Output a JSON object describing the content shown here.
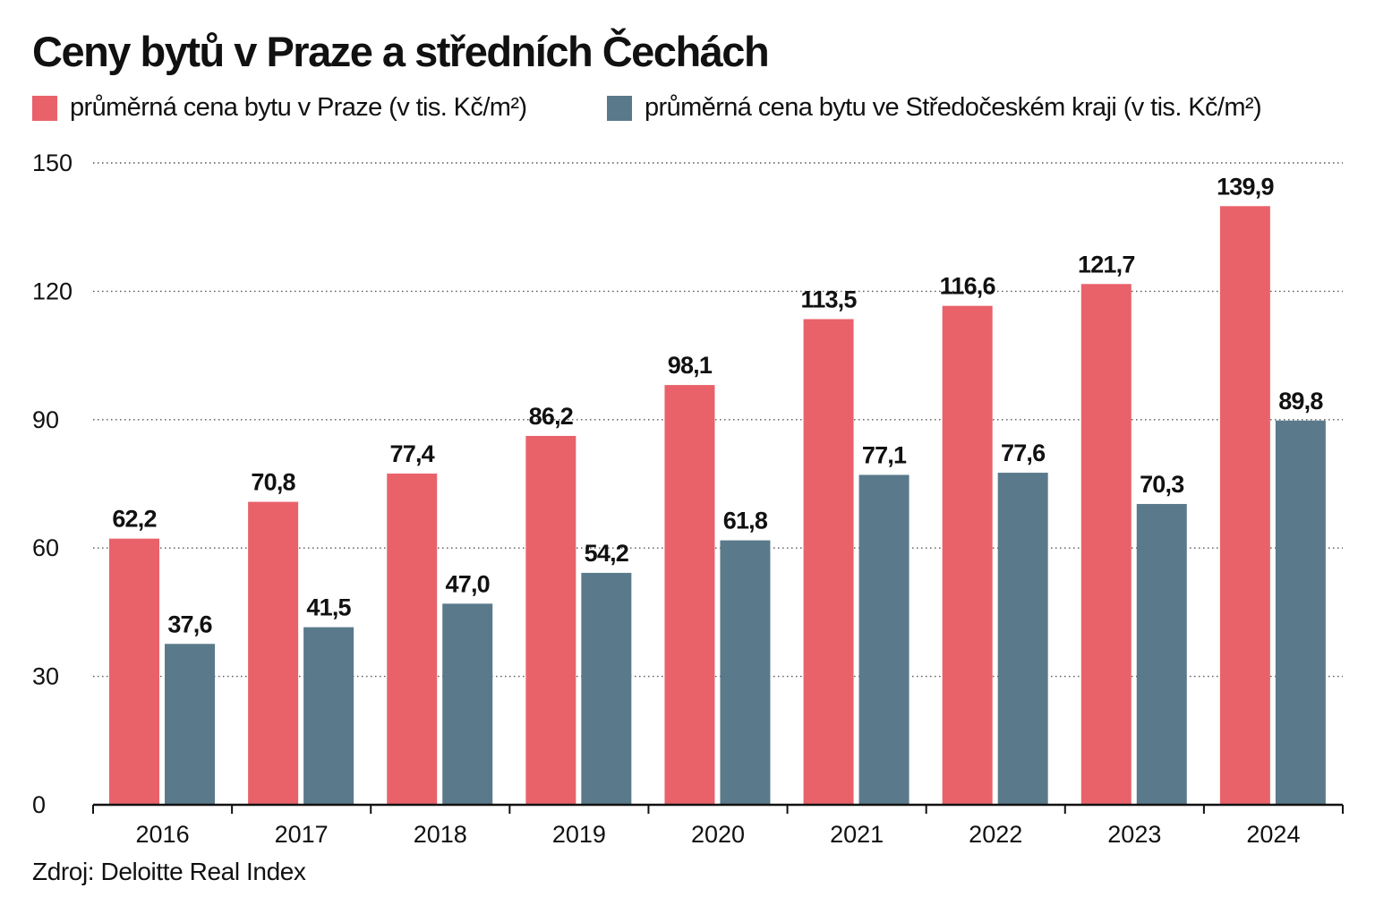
{
  "title": "Ceny bytů v Praze a středních Čechách",
  "source": "Zdroj: Deloitte Real Index",
  "colors": {
    "praha": "#e9626a",
    "stredocesky": "#5a7a8b"
  },
  "chart_data": {
    "type": "bar",
    "title": "Ceny bytů v Praze a středních Čechách",
    "categories": [
      "2016",
      "2017",
      "2018",
      "2019",
      "2020",
      "2021",
      "2022",
      "2023",
      "2024"
    ],
    "series": [
      {
        "name": "průměrná cena bytu v Praze (v tis. Kč/m²)",
        "color": "#e9626a",
        "values": [
          62.2,
          70.8,
          77.4,
          86.2,
          98.1,
          113.5,
          116.6,
          121.7,
          139.9
        ],
        "labels": [
          "62,2",
          "70,8",
          "77,4",
          "86,2",
          "98,1",
          "113,5",
          "116,6",
          "121,7",
          "139,9"
        ]
      },
      {
        "name": "průměrná cena bytu ve Středočeském kraji (v tis. Kč/m²)",
        "color": "#5a7a8b",
        "values": [
          37.6,
          41.5,
          47.0,
          54.2,
          61.8,
          77.1,
          77.6,
          70.3,
          89.8
        ],
        "labels": [
          "37,6",
          "41,5",
          "47,0",
          "54,2",
          "61,8",
          "77,1",
          "77,6",
          "70,3",
          "89,8"
        ]
      }
    ],
    "yticks": [
      "0",
      "30",
      "60",
      "90",
      "120",
      "150"
    ],
    "ylim": [
      0,
      150
    ],
    "xlabel": "",
    "ylabel": "",
    "grid": true,
    "grid_style": "dotted",
    "legend_position": "top"
  }
}
